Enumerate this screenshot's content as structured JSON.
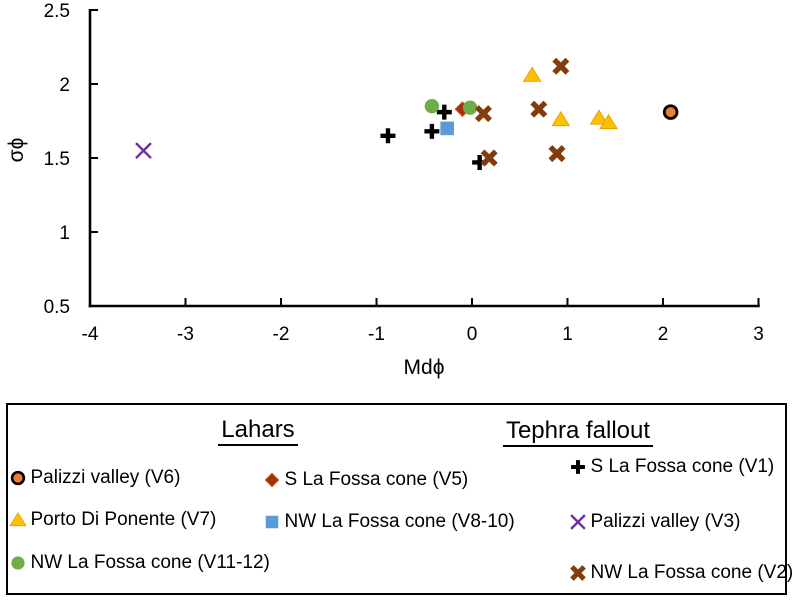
{
  "chart_data": {
    "type": "scatter",
    "title": "",
    "xlabel": "Mdϕ",
    "ylabel": "σϕ",
    "xlim": [
      -4,
      3
    ],
    "ylim": [
      0.5,
      2.5
    ],
    "grid": false,
    "x_ticks": {
      "values": [
        -4,
        -3,
        -2,
        -1,
        0,
        1,
        2,
        3
      ],
      "labels": [
        "-4",
        "-3",
        "-2",
        "-1",
        "0",
        "1",
        "2",
        "3"
      ]
    },
    "y_ticks": {
      "values": [
        0.5,
        1,
        1.5,
        2,
        2.5
      ],
      "labels": [
        "0.5",
        "1",
        "1.5",
        "2",
        "2.5"
      ]
    },
    "series": [
      {
        "name": "S La Fossa cone (V1)",
        "group": "Tephra fallout",
        "marker": "plus",
        "color": "#000000",
        "points": [
          [
            -0.88,
            1.65
          ],
          [
            -0.42,
            1.68
          ],
          [
            -0.29,
            1.81
          ],
          [
            0.08,
            1.47
          ]
        ]
      },
      {
        "name": "Palizzi valley (V3)",
        "group": "Tephra fallout",
        "marker": "x-thin",
        "color": "#7030A0",
        "points": [
          [
            -3.44,
            1.55
          ]
        ]
      },
      {
        "name": "S La Fossa cone (V5)",
        "group": "Lahars",
        "marker": "diamond",
        "color": "#A5300F",
        "points": [
          [
            -0.1,
            1.83
          ]
        ]
      },
      {
        "name": "NW La Fossa cone (V8-10)",
        "group": "Lahars",
        "marker": "square",
        "color": "#5B9BD5",
        "points": [
          [
            -0.26,
            1.7
          ]
        ]
      },
      {
        "name": "NW La Fossa cone (V11-12)",
        "group": "Lahars",
        "marker": "circle",
        "color": "#70AD47",
        "points": [
          [
            -0.42,
            1.85
          ],
          [
            -0.02,
            1.84
          ]
        ]
      },
      {
        "name": "Porto Di Ponente (V7)",
        "group": "Lahars",
        "marker": "triangle",
        "color": "#FFC000",
        "points": [
          [
            0.63,
            2.06
          ],
          [
            0.93,
            1.76
          ],
          [
            1.33,
            1.77
          ],
          [
            1.43,
            1.74
          ]
        ]
      },
      {
        "name": "NW La Fossa cone (V2)",
        "group": "Tephra fallout",
        "marker": "x-bold",
        "color": "#843C0C",
        "points": [
          [
            0.12,
            1.8
          ],
          [
            0.18,
            1.5
          ],
          [
            0.7,
            1.83
          ],
          [
            0.89,
            1.53
          ],
          [
            0.93,
            2.12
          ]
        ]
      },
      {
        "name": "Palizzi valley (V6)",
        "group": "Lahars",
        "marker": "circle-outlined",
        "color": "#ED7D31",
        "points": [
          [
            2.08,
            1.81
          ]
        ]
      }
    ]
  },
  "legend": {
    "lahars_title": "Lahars",
    "tephra_title": "Tephra fallout",
    "columns": [
      [
        "Palizzi valley (V6)",
        "Porto Di Ponente (V7)",
        "NW La Fossa cone (V11-12)"
      ],
      [
        "S La Fossa cone (V5)",
        "NW La Fossa cone (V8-10)"
      ],
      [
        "S La Fossa cone (V1)",
        "Palizzi valley (V3)",
        "NW La Fossa cone (V2)"
      ]
    ]
  },
  "colors": {
    "axis": "#000000",
    "orange": "#ED7D31",
    "gold": "#FFC000",
    "green": "#70AD47",
    "dark_red": "#A5300F",
    "blue": "#5B9BD5",
    "purple": "#7030A0",
    "brown": "#843C0C"
  }
}
